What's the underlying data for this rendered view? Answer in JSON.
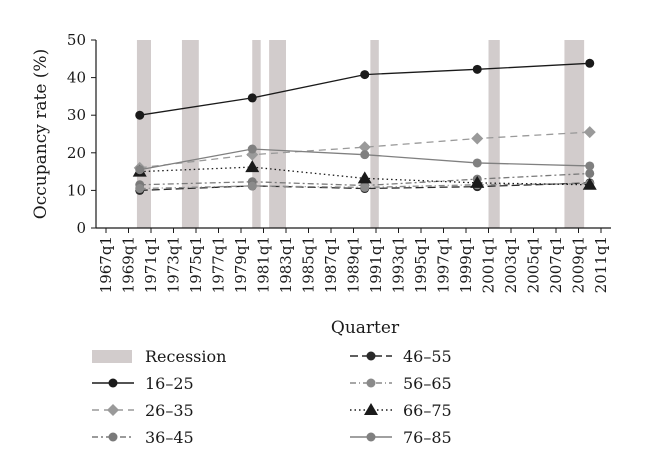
{
  "chart_data": {
    "type": "line",
    "xlabel": "Quarter",
    "ylabel": "Occupancy rate (%)",
    "ylim": [
      0,
      50
    ],
    "yticks": [
      "0",
      "10",
      "20",
      "30",
      "40",
      "50"
    ],
    "x_ticks": [
      "1967q1",
      "1969q1",
      "1971q1",
      "1973q1",
      "1975q1",
      "1977q1",
      "1979q1",
      "1981q1",
      "1983q1",
      "1985q1",
      "1987q1",
      "1989q1",
      "1991q1",
      "1993q1",
      "1995q1",
      "1997q1",
      "1999q1",
      "2001q1",
      "2003q1",
      "2005q1",
      "2007q1",
      "2009q1",
      "2011q1"
    ],
    "x_points": [
      "1970q1",
      "1980q1",
      "1990q1",
      "2000q1",
      "2010q1"
    ],
    "recession_label": "Recession",
    "recessions": [
      {
        "start": "1969q4",
        "end": "1970q4"
      },
      {
        "start": "1973q4",
        "end": "1975q1"
      },
      {
        "start": "1980q1",
        "end": "1980q3"
      },
      {
        "start": "1981q3",
        "end": "1982q4"
      },
      {
        "start": "1990q3",
        "end": "1991q1"
      },
      {
        "start": "2001q1",
        "end": "2001q4"
      },
      {
        "start": "2007q4",
        "end": "2009q2"
      }
    ],
    "series": [
      {
        "name": "16–25",
        "values": [
          30,
          34.6,
          40.8,
          42.2,
          43.8
        ],
        "color": "#1a1a1a",
        "dash": "",
        "marker": "circle"
      },
      {
        "name": "26–35",
        "values": [
          16,
          19.5,
          21.5,
          23.8,
          25.5
        ],
        "color": "#9a9a9a",
        "dash": "7,5",
        "marker": "diamond"
      },
      {
        "name": "36–45",
        "values": [
          11.5,
          12.3,
          11.3,
          13,
          14.5
        ],
        "color": "#7a7a7a",
        "dash": "6,3,2,3",
        "marker": "circle"
      },
      {
        "name": "46–55",
        "values": [
          10,
          11.2,
          10.5,
          11,
          12
        ],
        "color": "#2a2a2a",
        "dash": "8,4",
        "marker": "circle"
      },
      {
        "name": "56–65",
        "values": [
          10.5,
          11.2,
          10.8,
          11.5,
          11.8
        ],
        "color": "#8a8a8a",
        "dash": "6,3,1,3",
        "marker": "circle"
      },
      {
        "name": "66–75",
        "values": [
          15,
          16.2,
          13.2,
          12,
          11.5
        ],
        "color": "#1a1a1a",
        "dash": "1.5,3",
        "marker": "triangle"
      },
      {
        "name": "76–85",
        "values": [
          15.5,
          21,
          19.5,
          17.3,
          16.5
        ],
        "color": "#808080",
        "dash": "",
        "marker": "circle"
      }
    ]
  }
}
